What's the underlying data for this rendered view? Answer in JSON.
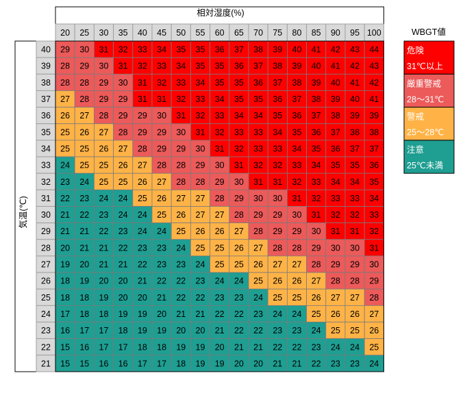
{
  "chart_data": {
    "type": "table",
    "column_header": "相対湿度(%)",
    "row_header": "気温(℃)",
    "legend_title": "WBGT値",
    "humidity": [
      20,
      25,
      30,
      35,
      40,
      45,
      50,
      55,
      60,
      65,
      70,
      75,
      80,
      85,
      90,
      95,
      100
    ],
    "temperature": [
      40,
      39,
      38,
      37,
      36,
      35,
      34,
      33,
      32,
      31,
      30,
      29,
      28,
      27,
      26,
      25,
      24,
      23,
      22,
      21
    ],
    "values": [
      [
        29,
        30,
        31,
        32,
        33,
        34,
        35,
        35,
        36,
        37,
        38,
        39,
        40,
        41,
        42,
        43,
        44
      ],
      [
        28,
        29,
        30,
        31,
        32,
        33,
        34,
        35,
        35,
        36,
        37,
        38,
        39,
        40,
        41,
        42,
        43
      ],
      [
        28,
        28,
        29,
        30,
        31,
        32,
        33,
        34,
        35,
        35,
        36,
        37,
        38,
        39,
        40,
        41,
        42
      ],
      [
        27,
        28,
        29,
        29,
        31,
        31,
        32,
        33,
        34,
        35,
        35,
        36,
        37,
        38,
        39,
        40,
        41
      ],
      [
        26,
        27,
        28,
        29,
        29,
        30,
        31,
        32,
        33,
        34,
        34,
        35,
        36,
        37,
        38,
        39,
        39
      ],
      [
        25,
        26,
        27,
        28,
        29,
        29,
        30,
        31,
        32,
        33,
        33,
        34,
        35,
        36,
        37,
        38,
        38
      ],
      [
        25,
        25,
        26,
        27,
        28,
        29,
        29,
        30,
        31,
        32,
        33,
        33,
        34,
        35,
        36,
        37,
        37
      ],
      [
        24,
        25,
        25,
        26,
        27,
        28,
        28,
        29,
        30,
        31,
        32,
        32,
        33,
        34,
        35,
        35,
        36
      ],
      [
        23,
        24,
        25,
        25,
        26,
        27,
        28,
        28,
        29,
        30,
        31,
        31,
        32,
        33,
        34,
        34,
        35
      ],
      [
        22,
        23,
        24,
        24,
        25,
        26,
        27,
        27,
        28,
        29,
        30,
        30,
        31,
        32,
        33,
        33,
        34
      ],
      [
        21,
        22,
        23,
        24,
        24,
        25,
        26,
        27,
        27,
        28,
        29,
        29,
        30,
        31,
        32,
        32,
        33
      ],
      [
        21,
        21,
        22,
        23,
        24,
        24,
        25,
        26,
        26,
        27,
        28,
        29,
        29,
        30,
        31,
        31,
        32
      ],
      [
        20,
        21,
        21,
        22,
        23,
        23,
        24,
        25,
        25,
        26,
        27,
        28,
        28,
        29,
        30,
        30,
        31
      ],
      [
        19,
        20,
        21,
        21,
        22,
        23,
        23,
        24,
        25,
        25,
        26,
        27,
        27,
        28,
        29,
        29,
        30
      ],
      [
        18,
        19,
        20,
        20,
        21,
        22,
        22,
        23,
        24,
        24,
        25,
        26,
        26,
        27,
        28,
        28,
        29
      ],
      [
        18,
        18,
        19,
        20,
        20,
        21,
        22,
        22,
        23,
        23,
        24,
        25,
        25,
        26,
        27,
        27,
        28
      ],
      [
        17,
        18,
        18,
        19,
        19,
        20,
        21,
        21,
        22,
        22,
        23,
        24,
        24,
        25,
        26,
        26,
        27
      ],
      [
        16,
        17,
        17,
        18,
        19,
        19,
        20,
        20,
        21,
        22,
        22,
        23,
        23,
        24,
        25,
        25,
        26
      ],
      [
        15,
        16,
        17,
        17,
        18,
        18,
        19,
        19,
        20,
        21,
        21,
        22,
        22,
        23,
        24,
        24,
        25
      ],
      [
        15,
        15,
        16,
        16,
        17,
        17,
        18,
        19,
        19,
        20,
        20,
        21,
        21,
        22,
        23,
        23,
        24
      ]
    ],
    "categories": [
      {
        "name": "危険",
        "range": "31℃以上",
        "min": 31,
        "color": "#ff0000"
      },
      {
        "name": "厳重警戒",
        "range": "28～31℃",
        "min": 28,
        "color": "#ec5a5a"
      },
      {
        "name": "警戒",
        "range": "25～28℃",
        "min": 25,
        "color": "#ffb347"
      },
      {
        "name": "注意",
        "range": "25℃未満",
        "min": -100,
        "color": "#1f9e92"
      }
    ],
    "header_fill": "#d9d9d9"
  }
}
